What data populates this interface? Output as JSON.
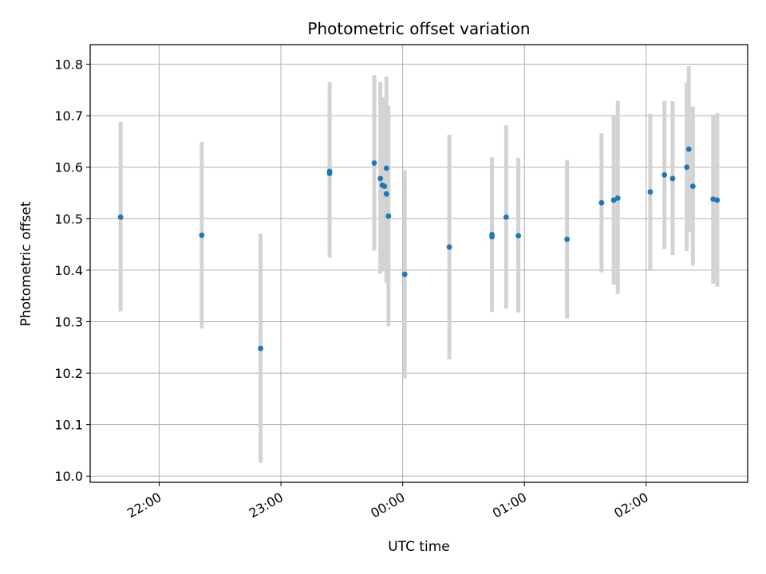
{
  "chart_data": {
    "type": "scatter",
    "title": "Photometric offset variation",
    "xlabel": "UTC time",
    "ylabel": "Photometric offset",
    "grid": true,
    "x_axis": "time",
    "xlim": [
      "21:26",
      "02:50"
    ],
    "ylim": [
      9.988,
      10.838
    ],
    "x_ticks": [
      "22:00",
      "23:00",
      "00:00",
      "01:00",
      "02:00"
    ],
    "y_ticks": [
      "10.0",
      "10.1",
      "10.2",
      "10.3",
      "10.4",
      "10.5",
      "10.6",
      "10.7",
      "10.8"
    ],
    "y_tick_values": [
      10.0,
      10.1,
      10.2,
      10.3,
      10.4,
      10.5,
      10.6,
      10.7,
      10.8
    ],
    "marker_color": "#1f77b4",
    "errorbar_color": "#d3d3d3",
    "series": [
      {
        "points": [
          {
            "t": "21:41",
            "y": 10.503,
            "lo": 10.32,
            "hi": 10.688
          },
          {
            "t": "22:21",
            "y": 10.468,
            "lo": 10.287,
            "hi": 10.649
          },
          {
            "t": "22:50",
            "y": 10.248,
            "lo": 10.026,
            "hi": 10.471
          },
          {
            "t": "23:24",
            "y": 10.592,
            "lo": 10.424,
            "hi": 10.765
          },
          {
            "t": "23:24",
            "y": 10.588,
            "lo": 10.434,
            "hi": 10.743
          },
          {
            "t": "23:46",
            "y": 10.608,
            "lo": 10.438,
            "hi": 10.779
          },
          {
            "t": "23:49",
            "y": 10.578,
            "lo": 10.393,
            "hi": 10.765
          },
          {
            "t": "23:50",
            "y": 10.565,
            "lo": 10.398,
            "hi": 10.735
          },
          {
            "t": "23:51",
            "y": 10.563,
            "lo": 10.402,
            "hi": 10.733
          },
          {
            "t": "23:52",
            "y": 10.598,
            "lo": 10.426,
            "hi": 10.776
          },
          {
            "t": "23:52",
            "y": 10.548,
            "lo": 10.376,
            "hi": 10.72
          },
          {
            "t": "23:53",
            "y": 10.505,
            "lo": 10.291,
            "hi": 10.719
          },
          {
            "t": "00:01",
            "y": 10.392,
            "lo": 10.19,
            "hi": 10.594
          },
          {
            "t": "00:23",
            "y": 10.445,
            "lo": 10.227,
            "hi": 10.663
          },
          {
            "t": "00:44",
            "y": 10.469,
            "lo": 10.32,
            "hi": 10.619
          },
          {
            "t": "00:44",
            "y": 10.465,
            "lo": 10.319,
            "hi": 10.611
          },
          {
            "t": "00:51",
            "y": 10.503,
            "lo": 10.326,
            "hi": 10.681
          },
          {
            "t": "00:57",
            "y": 10.467,
            "lo": 10.318,
            "hi": 10.618
          },
          {
            "t": "01:21",
            "y": 10.46,
            "lo": 10.306,
            "hi": 10.614
          },
          {
            "t": "01:38",
            "y": 10.531,
            "lo": 10.396,
            "hi": 10.666
          },
          {
            "t": "01:44",
            "y": 10.536,
            "lo": 10.372,
            "hi": 10.7
          },
          {
            "t": "01:46",
            "y": 10.54,
            "lo": 10.354,
            "hi": 10.729
          },
          {
            "t": "02:02",
            "y": 10.552,
            "lo": 10.401,
            "hi": 10.704
          },
          {
            "t": "02:09",
            "y": 10.585,
            "lo": 10.441,
            "hi": 10.729
          },
          {
            "t": "02:13",
            "y": 10.578,
            "lo": 10.429,
            "hi": 10.728
          },
          {
            "t": "02:20",
            "y": 10.6,
            "lo": 10.437,
            "hi": 10.764
          },
          {
            "t": "02:21",
            "y": 10.635,
            "lo": 10.474,
            "hi": 10.796
          },
          {
            "t": "02:23",
            "y": 10.563,
            "lo": 10.409,
            "hi": 10.718
          },
          {
            "t": "02:33",
            "y": 10.538,
            "lo": 10.374,
            "hi": 10.702
          },
          {
            "t": "02:35",
            "y": 10.536,
            "lo": 10.368,
            "hi": 10.705
          }
        ]
      }
    ]
  }
}
